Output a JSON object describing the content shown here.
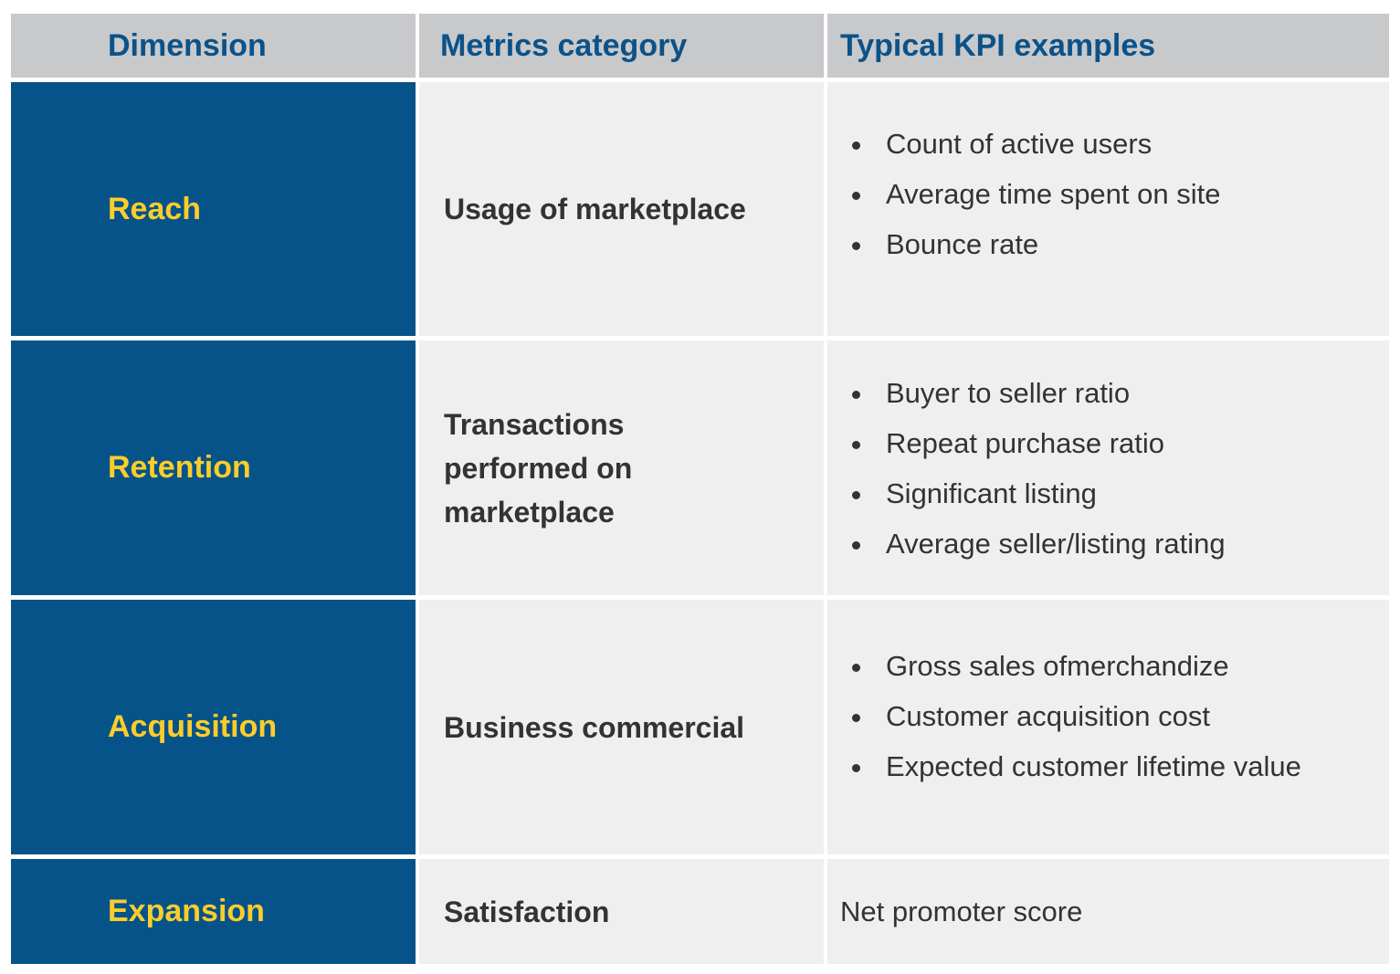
{
  "headers": [
    "Dimension",
    "Metrics category",
    "Typical KPI examples"
  ],
  "rows": [
    {
      "dimension": "Reach",
      "category": "Usage of marketplace",
      "kpis": [
        "Count of active users",
        "Average time spent on site",
        "Bounce rate"
      ]
    },
    {
      "dimension": "Retention",
      "category": "Transactions performed on marketplace",
      "kpis": [
        "Buyer to seller ratio",
        "Repeat purchase ratio",
        "Significant listing",
        "Average seller/listing rating"
      ]
    },
    {
      "dimension": "Acquisition",
      "category": "Business commercial",
      "kpis": [
        "Gross sales ofmerchandize",
        "Customer acquisition cost",
        "Expected customer lifetime value"
      ]
    },
    {
      "dimension": "Expansion",
      "category": "Satisfaction",
      "kpi_text": "Net promoter score"
    }
  ],
  "colors": {
    "header_bg": "#c8c9cb",
    "header_text": "#0b5289",
    "dimension_bg": "#06538a",
    "dimension_text": "#fccd2a",
    "body_bg": "#efefef",
    "body_text": "#333333"
  }
}
